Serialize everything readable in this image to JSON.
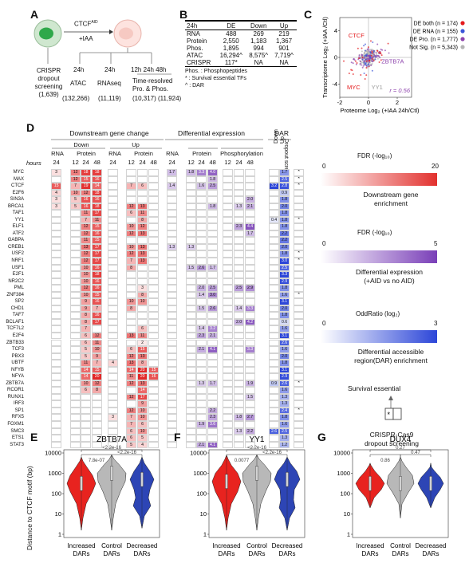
{
  "panels": {
    "a": "A",
    "b": "B",
    "c": "C",
    "d": "D",
    "e": "E",
    "f": "F",
    "g": "G"
  },
  "panel_a": {
    "ctcf_aid": "CTCF",
    "aid_sup": "AID",
    "iaa": "+IAA",
    "left_label": [
      "CRISPR",
      "dropout",
      "screening"
    ],
    "left_count": "(1,639)",
    "atac_time": "24h",
    "atac": "ATAC",
    "atac_count": "(132,266)",
    "rna_time": "24h",
    "rna": "RNAseq",
    "rna_count": "(11,119)",
    "tr_times": "12h  24h  48h",
    "tr_label": [
      "Time-resolved",
      "Pro. & Phos."
    ],
    "tr_count": "(10,317) (11,924)"
  },
  "panel_b": {
    "headers": [
      "24h",
      "DE",
      "Down",
      "Up"
    ],
    "rows": [
      [
        "RNA",
        "488",
        "269",
        "219"
      ],
      [
        "Protein",
        "2,550",
        "1,183",
        "1,367"
      ],
      [
        "Phos.",
        "1,895",
        "994",
        "901"
      ],
      [
        "ATAC",
        "16,294^",
        "8,575^",
        "7,719^"
      ],
      [
        "CRISPR",
        "117*",
        "NA",
        "NA"
      ]
    ],
    "notes": [
      "Phos. : Phosphopeptides",
      "* : Survival essential TFs",
      "^ : DAR"
    ]
  },
  "panel_c": {
    "chart_data": {
      "type": "scatter",
      "xlabel": "Proteome Log₂ (+IAA 24h/Ctl)",
      "ylabel": "Transcriptome Log₂ (+IAA /Ctl)",
      "xlim": [
        -2,
        3
      ],
      "ylim": [
        -6,
        6
      ],
      "x_ticks": [
        "-2",
        "0",
        "2"
      ],
      "y_ticks": [
        "-4",
        "0",
        "4"
      ],
      "legend": [
        {
          "label": "DE both (n = 174)",
          "color": "#e41a1c"
        },
        {
          "label": "DE RNA (n = 155)",
          "color": "#3a55d9"
        },
        {
          "label": "DE Pro. (n = 1,777)",
          "color": "#8e44ad"
        },
        {
          "label": "Not Sig. (n = 5,343)",
          "color": "#b5b5b5"
        }
      ],
      "annotations": [
        {
          "text": "CTCF",
          "x": -1.4,
          "y": 3.0,
          "color": "#e41a1c"
        },
        {
          "text": "MYC",
          "x": -1.5,
          "y": -4.8,
          "color": "#e41a1c"
        },
        {
          "text": "ZBTB7A",
          "x": 0.9,
          "y": -0.9,
          "color": "#8e44ad"
        },
        {
          "text": "YY1",
          "x": 0.2,
          "y": -4.8,
          "color": "#999999"
        }
      ],
      "r_label": "r = 0.56",
      "legend_position": "top-right"
    }
  },
  "panel_d": {
    "group_titles": {
      "downstream": "Downstream gene change",
      "diffexp": "Differential expression",
      "dar": "DAR",
      "dropout": "Dropout screening"
    },
    "sub_titles": {
      "down": "Down",
      "up": "Up",
      "protein": "Protein",
      "phos": "Phosphorylation",
      "dar_down": "Down",
      "dar_up": "Up"
    },
    "col_headers": [
      "RNA",
      "Protein",
      "RNA",
      "Protein",
      "RNA",
      "Protein"
    ],
    "hours_label": "hours",
    "hour_ticks": [
      "24",
      "12",
      "24",
      "48",
      "24",
      "12",
      "24",
      "48",
      "24",
      "12",
      "24",
      "48",
      "12",
      "24",
      "48"
    ],
    "genes": [
      "MYC",
      "MAX",
      "CTCF",
      "E2F6",
      "SIN3A",
      "BRCA1",
      "TAF1",
      "YY1",
      "ELF1",
      "ATF2",
      "GABPA",
      "CREB1",
      "USF2",
      "NRF1",
      "USF1",
      "E2F1",
      "NR2C2",
      "PML",
      "ZNF384",
      "SP2",
      "CHD1",
      "TAF7",
      "BCLAF1",
      "TCF7L2",
      "E2F4",
      "ZBTB33",
      "TCF3",
      "PBX3",
      "UBTF",
      "NFYB",
      "NFYA",
      "ZBTB7A",
      "RCOR1",
      "RUNX1",
      "IRF3",
      "SP1",
      "RFX5",
      "FOXM1",
      "SMC3",
      "ETS1",
      "STAT3"
    ],
    "dropout_star": "*",
    "legend": {
      "fdr_red_title": "FDR (-log₁₀)",
      "fdr_red_min": "0",
      "fdr_red_max": "20",
      "fdr_red_caption": [
        "Downstream gene",
        "enrichment"
      ],
      "fdr_pur_title": "FDR (-log₁₀)",
      "fdr_pur_min": "0",
      "fdr_pur_max": "5",
      "fdr_pur_caption": [
        "Differential expression",
        "(+AID vs no AID)"
      ],
      "or_title": "OddRatio (log₂)",
      "or_min": "0",
      "or_max": "3",
      "or_caption": [
        "Differential accessible",
        "region(DAR) enrichment"
      ],
      "surv_title": "Survival essential",
      "surv_caption": [
        "CRISPR-Cas9",
        "dropout screening"
      ]
    },
    "values": {
      "MYC": {
        "c1": "3",
        "c2": "12",
        "c3": "18",
        "c4": "18",
        "c9": "1.7",
        "c13": "1.8",
        "c14": "3.3",
        "c15": "4.0",
        "c20": "1.7",
        "star": true
      },
      "MAX": {
        "c2": "12",
        "c3": "15",
        "c4": "16",
        "c15": "1.8",
        "c20": "2.5",
        "star": true
      },
      "CTCF": {
        "c1": "15",
        "c2": "7",
        "c3": "19",
        "c4": "14",
        "c6": "7",
        "c7": "6",
        "c9": "1.4",
        "c14": "1.6",
        "c15": "2.5",
        "c19": "3.2",
        "c20": "2.8",
        "star": true
      },
      "E2F6": {
        "c1": "4",
        "c2": "10",
        "c3": "12",
        "c4": "18",
        "c20": "0.9"
      },
      "SIN3A": {
        "c1": "3",
        "c2": "5",
        "c3": "16",
        "c4": "16",
        "c18": "2.0",
        "c20": "1.8"
      },
      "BRCA1": {
        "c1": "3",
        "c2": "5",
        "c3": "16",
        "c4": "18",
        "c6": "12",
        "c7": "13",
        "c15": "1.8",
        "c17": "1.3",
        "c18": "2.1",
        "c20": "2.0"
      },
      "TAF1": {
        "c3": "11",
        "c4": "17",
        "c6": "6",
        "c7": "11",
        "c20": "1.8"
      },
      "YY1": {
        "c3": "7",
        "c4": "11",
        "c7": "8",
        "c19": "0.4",
        "c20": "1.8",
        "star": true
      },
      "ELF1": {
        "c3": "12",
        "c4": "15",
        "c6": "10",
        "c7": "12",
        "c17": "2.3",
        "c18": "4.4",
        "c20": "1.8"
      },
      "ATF2": {
        "c3": "12",
        "c4": "16",
        "c6": "12",
        "c7": "13",
        "c18": "1.7",
        "c20": "2.2"
      },
      "GABPA": {
        "c3": "11",
        "c4": "15",
        "c20": "2.2"
      },
      "CREB1": {
        "c3": "13",
        "c4": "17",
        "c6": "10",
        "c7": "13",
        "c9": "1.3",
        "c13": "1.3",
        "c20": "2.0"
      },
      "USF2": {
        "c3": "12",
        "c4": "17",
        "c6": "12",
        "c7": "13",
        "c20": "1.8",
        "star": true
      },
      "NRF1": {
        "c3": "12",
        "c4": "17",
        "c6": "7",
        "c7": "13",
        "c20": "3.0",
        "star": true
      },
      "USF1": {
        "c3": "10",
        "c4": "16",
        "c6": "8",
        "c13": "1.5",
        "c14": "2.6",
        "c15": "1.7",
        "c20": "2.5"
      },
      "E2F1": {
        "c3": "10",
        "c4": "18",
        "c20": "3.3"
      },
      "NR2C2": {
        "c3": "10",
        "c4": "16",
        "c20": "2.9"
      },
      "PML": {
        "c3": "12",
        "c4": "16",
        "c7": "3",
        "c14": "2.0",
        "c15": "2.5",
        "c17": "2.5",
        "c18": "2.9",
        "c20": "1.8"
      },
      "ZNF384": {
        "c3": "10",
        "c4": "15",
        "c7": "8",
        "c14": "1.4",
        "c15": "3.0",
        "c20": "1.6",
        "star": true
      },
      "SP2": {
        "c3": "9",
        "c4": "16",
        "c6": "10",
        "c7": "10",
        "c20": "3.1"
      },
      "CHD1": {
        "c3": "9",
        "c4": "7",
        "c6": "8",
        "c14": "1.5",
        "c15": "2.6",
        "c17": "1.4",
        "c18": "3.3",
        "c20": "2.0"
      },
      "TAF7": {
        "c3": "8",
        "c4": "16",
        "c20": "1.8"
      },
      "BCLAF1": {
        "c3": "8",
        "c4": "17",
        "c17": "2.0",
        "c18": "4.2",
        "c20": "0.6"
      },
      "TCF7L2": {
        "c3": "7",
        "c7": "6",
        "c14": "1.4",
        "c15": "3.2",
        "c20": "1.6"
      },
      "E2F4": {
        "c3": "6",
        "c4": "12",
        "c6": "13",
        "c7": "11",
        "c14": "2.3",
        "c15": "2.1",
        "c20": "3.1"
      },
      "ZBTB33": {
        "c3": "6",
        "c4": "11",
        "c7": "2",
        "c20": "2.6"
      },
      "TCF3": {
        "c3": "5",
        "c4": "10",
        "c6": "6",
        "c7": "15",
        "c14": "2.1",
        "c15": "4.1",
        "c18": "3.3",
        "c20": "1.6"
      },
      "PBX3": {
        "c3": "5",
        "c4": "9",
        "c6": "12",
        "c7": "13",
        "c20": "2.0"
      },
      "UBTF": {
        "c3": "11",
        "c4": "7",
        "c5": "4",
        "c6": "13",
        "c7": "8",
        "c20": "1.8"
      },
      "NFYB": {
        "c3": "14",
        "c4": "15",
        "c6": "14",
        "c7": "20",
        "c8": "15",
        "c20": "3.1"
      },
      "NFYA": {
        "c3": "14",
        "c4": "20",
        "c6": "11",
        "c7": "20",
        "c8": "16",
        "c20": "2.9"
      },
      "ZBTB7A": {
        "c3": "10",
        "c4": "12",
        "c6": "12",
        "c7": "13",
        "c14": "1.3",
        "c15": "1.7",
        "c18": "1.9",
        "c19": "0.9",
        "c20": "2.6",
        "star": true
      },
      "RCOR1": {
        "c3": "6",
        "c4": "8",
        "c7": "14",
        "c20": "1.6"
      },
      "RUNX1": {
        "c6": "12",
        "c7": "17",
        "c18": "1.5",
        "c20": "1.3"
      },
      "IRF3": {
        "c7": "9",
        "c20": "1.3"
      },
      "SP1": {
        "c6": "12",
        "c7": "10",
        "c15": "2.2",
        "c20": "2.4",
        "star": true
      },
      "RFX5": {
        "c5": "3",
        "c6": "7",
        "c7": "10",
        "c15": "2.3",
        "c17": "1.8",
        "c18": "2.7",
        "c20": "1.8"
      },
      "FOXM1": {
        "c6": "7",
        "c7": "6",
        "c14": "1.9",
        "c15": "3.6",
        "c20": "1.6"
      },
      "SMC3": {
        "c6": "6",
        "c7": "10",
        "c17": "1.3",
        "c18": "2.2",
        "c19": "2.6",
        "c20": "2.5"
      },
      "ETS1": {
        "c6": "6",
        "c7": "5",
        "c20": "1.3"
      },
      "STAT3": {
        "c6": "5",
        "c7": "4",
        "c14": "2.1",
        "c15": "4.1",
        "c20": "1.2"
      }
    }
  },
  "violins": {
    "ylabel": "Distance to CTCF motif (bp)",
    "y_ticks": [
      "10000",
      "1000",
      "100",
      "10",
      "1"
    ],
    "xcats": [
      "Increased DARs",
      "Control DARs",
      "Decreased DARs"
    ],
    "panels": [
      {
        "title": "ZBTB7A",
        "p_inner_left": "7.8e-07",
        "p_inner_right": "<2.2e-16",
        "p_outer": "<2.2e-16"
      },
      {
        "title": "YY1",
        "p_inner_left": "0.0077",
        "p_inner_right": "<2.2e-16",
        "p_outer": "<2.2e-16"
      },
      {
        "title": "DUX4",
        "p_inner_left": "0.86",
        "p_inner_right": "0.47",
        "p_outer": "0.27"
      }
    ],
    "colors": {
      "increased": "#e8231f",
      "control": "#b8b8b8",
      "decreased": "#2d45b5"
    }
  }
}
